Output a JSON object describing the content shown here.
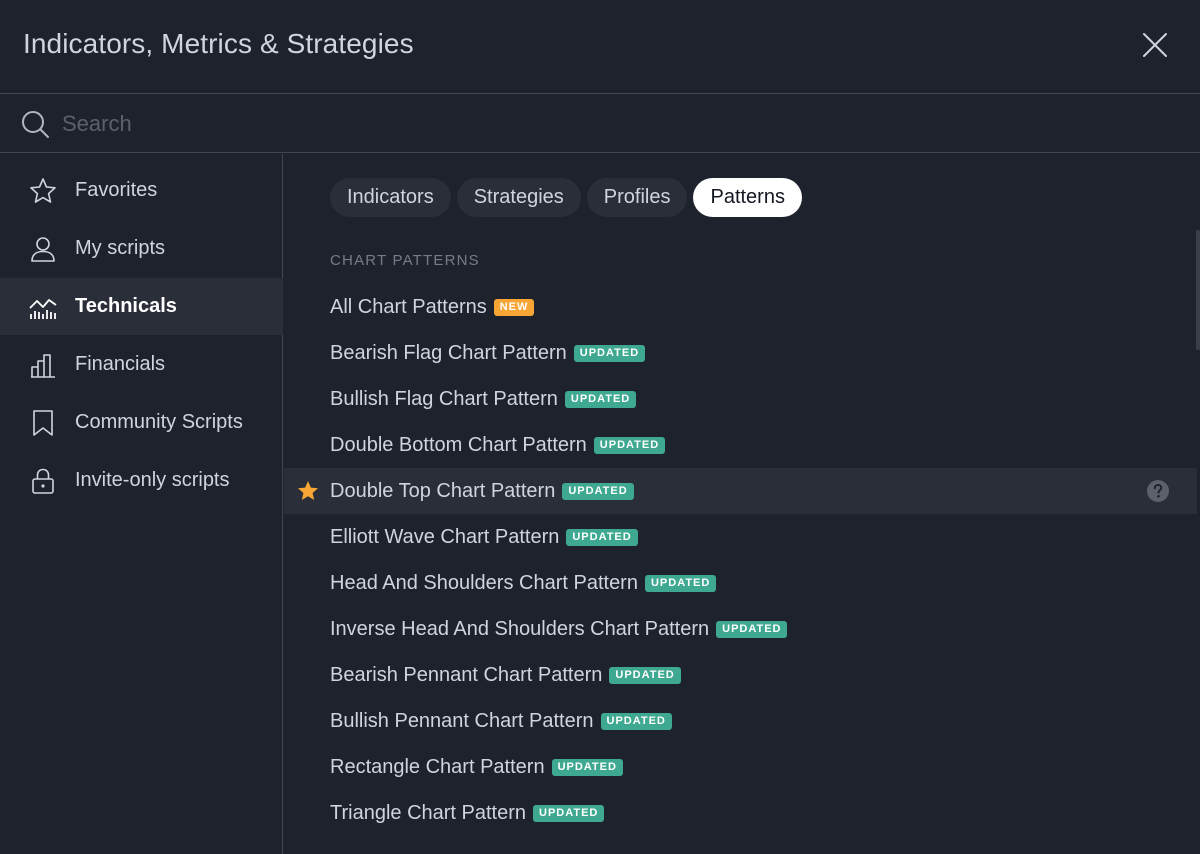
{
  "header": {
    "title": "Indicators, Metrics & Strategies"
  },
  "search": {
    "placeholder": "Search",
    "value": ""
  },
  "sidebar": {
    "items": [
      {
        "label": "Favorites",
        "icon": "star-icon"
      },
      {
        "label": "My scripts",
        "icon": "user-icon"
      },
      {
        "label": "Technicals",
        "icon": "chart-line-icon",
        "active": true
      },
      {
        "label": "Financials",
        "icon": "bar-chart-icon"
      },
      {
        "label": "Community Scripts",
        "icon": "bookmark-icon"
      },
      {
        "label": "Invite-only scripts",
        "icon": "lock-icon"
      }
    ]
  },
  "tabs": [
    {
      "label": "Indicators"
    },
    {
      "label": "Strategies"
    },
    {
      "label": "Profiles"
    },
    {
      "label": "Patterns",
      "active": true
    }
  ],
  "section": {
    "title": "CHART PATTERNS"
  },
  "patterns": [
    {
      "label": "All Chart Patterns",
      "badge": "NEW"
    },
    {
      "label": "Bearish Flag Chart Pattern",
      "badge": "UPDATED"
    },
    {
      "label": "Bullish Flag Chart Pattern",
      "badge": "UPDATED"
    },
    {
      "label": "Double Bottom Chart Pattern",
      "badge": "UPDATED"
    },
    {
      "label": "Double Top Chart Pattern",
      "badge": "UPDATED",
      "favorite": true
    },
    {
      "label": "Elliott Wave Chart Pattern",
      "badge": "UPDATED"
    },
    {
      "label": "Head And Shoulders Chart Pattern",
      "badge": "UPDATED"
    },
    {
      "label": "Inverse Head And Shoulders Chart Pattern",
      "badge": "UPDATED"
    },
    {
      "label": "Bearish Pennant Chart Pattern",
      "badge": "UPDATED"
    },
    {
      "label": "Bullish Pennant Chart Pattern",
      "badge": "UPDATED"
    },
    {
      "label": "Rectangle Chart Pattern",
      "badge": "UPDATED"
    },
    {
      "label": "Triangle Chart Pattern",
      "badge": "UPDATED"
    }
  ],
  "colors": {
    "background": "#1e222d",
    "active_bg": "#2a2e39",
    "new_badge": "#f7a534",
    "updated_badge": "#3ea890",
    "favorite_star": "#f7a534"
  }
}
